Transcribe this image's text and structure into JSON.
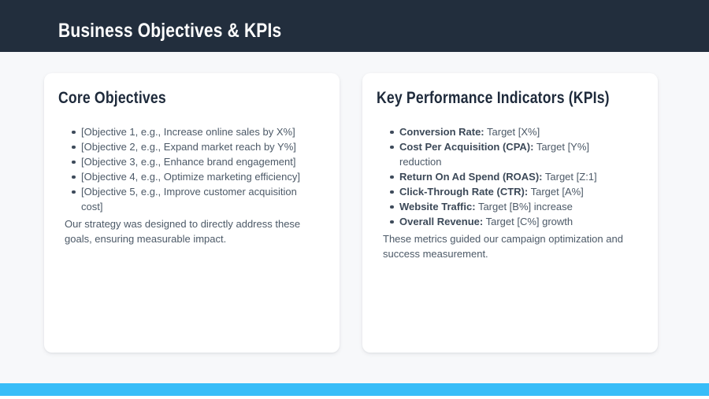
{
  "theme": {
    "header_bg": "#222E3D",
    "accent_color": "#38BDF8",
    "page_bg": "#F7F8FA",
    "card_bg": "#FFFFFF",
    "heading_color": "#1E2A3B",
    "text_color": "#4C5967"
  },
  "header": {
    "title": "Business Objectives & KPIs"
  },
  "cards": [
    {
      "title": "Core Objectives",
      "bullets": [
        {
          "text": "[Objective 1, e.g., Increase online sales by X%]"
        },
        {
          "text": "[Objective 2, e.g., Expand market reach by Y%]"
        },
        {
          "text": "[Objective 3, e.g., Enhance brand engagement]"
        },
        {
          "text": "[Objective 4, e.g., Optimize marketing efficiency]"
        },
        {
          "text": "[Objective 5, e.g., Improve customer acquisition cost]"
        }
      ],
      "note": "Our strategy was designed to directly address these goals, ensuring measurable impact."
    },
    {
      "title": "Key Performance Indicators (KPIs)",
      "bullets": [
        {
          "label": "Conversion Rate:",
          "text": "Target [X%]"
        },
        {
          "label": "Cost Per Acquisition (CPA):",
          "text": "Target [Y%] reduction"
        },
        {
          "label": "Return On Ad Spend (ROAS):",
          "text": "Target [Z:1]"
        },
        {
          "label": "Click-Through Rate (CTR):",
          "text": "Target [A%]"
        },
        {
          "label": "Website Traffic:",
          "text": "Target [B%] increase"
        },
        {
          "label": "Overall Revenue:",
          "text": "Target [C%] growth"
        }
      ],
      "note": "These metrics guided our campaign optimization and success measurement."
    }
  ]
}
